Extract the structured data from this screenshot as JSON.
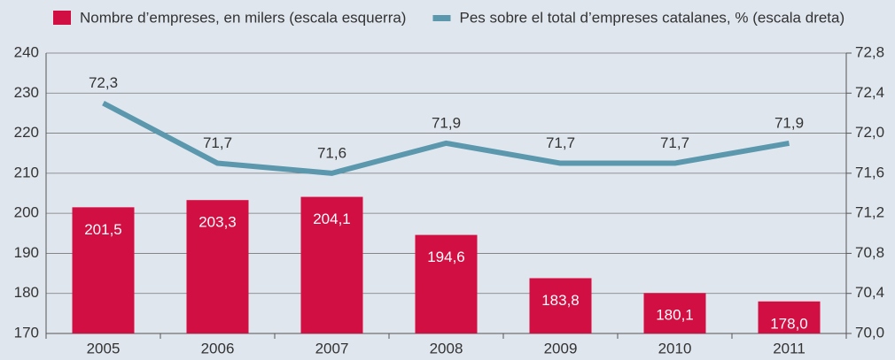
{
  "chart_data": {
    "type": "bar",
    "categories": [
      "2005",
      "2006",
      "2007",
      "2008",
      "2009",
      "2010",
      "2011"
    ],
    "series": [
      {
        "name": "Nombre d’empreses, en milers (escala esquerra)",
        "type": "bar",
        "color": "#d20f42",
        "values": [
          201.5,
          203.3,
          204.1,
          194.6,
          183.8,
          180.1,
          178.0
        ],
        "value_labels": [
          "201,5",
          "203,3",
          "204,1",
          "194,6",
          "183,8",
          "180,1",
          "178,0"
        ]
      },
      {
        "name": "Pes sobre el total d’empreses catalanes, % (escala dreta)",
        "type": "line",
        "axis": "y2",
        "color": "#5b98ae",
        "values": [
          72.3,
          71.7,
          71.6,
          71.9,
          71.7,
          71.7,
          71.9
        ],
        "value_labels": [
          "72,3",
          "71,7",
          "71,6",
          "71,9",
          "71,7",
          "71,7",
          "71,9"
        ]
      }
    ],
    "ylim": [
      170,
      240
    ],
    "yticks": [
      170,
      180,
      190,
      200,
      210,
      220,
      230,
      240
    ],
    "y2lim": [
      70.0,
      72.8
    ],
    "y2ticks": [
      {
        "value": 70.0,
        "label": "70,0"
      },
      {
        "value": 70.4,
        "label": "70,4"
      },
      {
        "value": 70.8,
        "label": "70,8"
      },
      {
        "value": 71.2,
        "label": "71,2"
      },
      {
        "value": 71.6,
        "label": "71,6"
      },
      {
        "value": 72.0,
        "label": "72,0"
      },
      {
        "value": 72.4,
        "label": "72,4"
      },
      {
        "value": 72.8,
        "label": "72,8"
      }
    ],
    "grid": true,
    "legend": "top"
  }
}
